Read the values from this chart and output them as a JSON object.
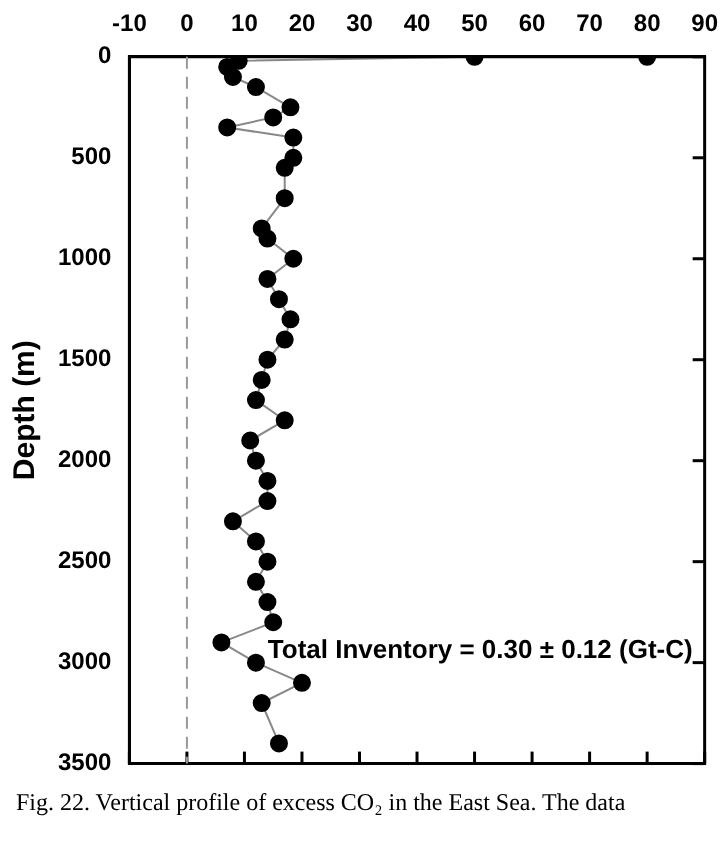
{
  "chart_data": {
    "type": "line",
    "ylabel": "Depth (m)",
    "annotations": [
      "Total Inventory = 0.30 ± 0.12 (Gt-C)",
      "Fig. 22. Vertical profile of excess CO₂ in the East Sea. The data"
    ],
    "x": [
      80,
      50,
      9,
      7,
      8,
      12,
      18,
      15,
      7,
      18.5,
      18.5,
      17,
      17,
      13,
      14,
      18.5,
      14,
      16,
      18,
      17,
      14,
      13,
      12,
      17,
      11,
      12,
      14,
      14,
      8,
      12,
      14,
      12,
      14,
      15,
      6,
      12,
      20,
      13,
      16
    ],
    "values": [
      0,
      0,
      20,
      50,
      100,
      150,
      250,
      300,
      350,
      400,
      500,
      550,
      700,
      850,
      900,
      1000,
      1100,
      1200,
      1300,
      1400,
      1500,
      1600,
      1700,
      1800,
      1900,
      2000,
      2100,
      2200,
      2300,
      2400,
      2500,
      2600,
      2700,
      2800,
      2900,
      3000,
      3100,
      3200,
      3400
    ],
    "color": "#000000",
    "marker": "circle",
    "line_style": "solid",
    "xlim": [
      -10,
      90
    ],
    "xticks": [
      -10,
      0,
      10,
      20,
      30,
      40,
      50,
      60,
      70,
      80,
      90
    ],
    "ylim": [
      3500,
      0
    ],
    "yticks": [
      0,
      500,
      1000,
      1500,
      2000,
      2500,
      3000,
      3500
    ],
    "ref_lines": [
      {
        "axis": "x",
        "value": 0,
        "line_style": "dashed",
        "color": "#999999"
      }
    ],
    "grid": false,
    "legend": false
  }
}
